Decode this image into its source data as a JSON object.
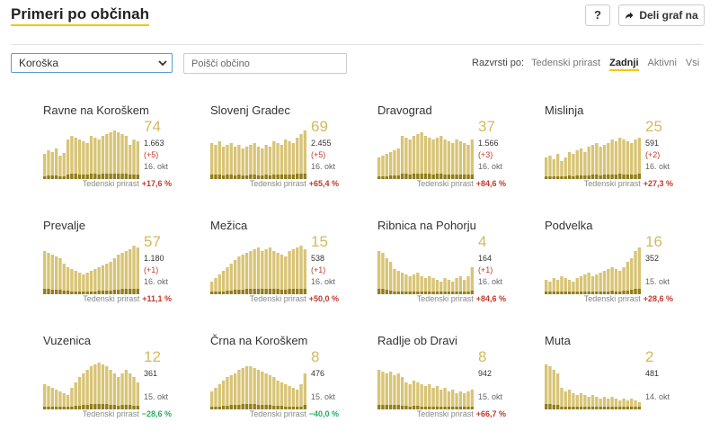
{
  "header": {
    "title": "Primeri po občinah",
    "help_label": "?",
    "share_label": "Deli graf na"
  },
  "filters": {
    "region_selected": "Koroška",
    "search_placeholder": "Poišči občino",
    "sort_label": "Razvrsti po:",
    "sort_options": [
      "Tedenski prirast",
      "Zadnji",
      "Aktivni",
      "Vsi"
    ],
    "sort_active_index": 1
  },
  "growth_label": "Tedenski prirast",
  "colors": {
    "accent": "#f2c811",
    "bar_light": "#d8c475",
    "bar_dark": "#8f7d1f",
    "growth_up": "#c0392b",
    "growth_down": "#27ae60"
  },
  "cards": [
    {
      "name": "Ravne na Koroškem",
      "active": "74",
      "total": "1.663",
      "delta": "(+5)",
      "date": "16. okt",
      "growth": "+17,6 %",
      "dir": "up",
      "bars": [
        28,
        32,
        30,
        34,
        26,
        29,
        44,
        48,
        46,
        44,
        42,
        40,
        48,
        46,
        44,
        48,
        50,
        52,
        54,
        52,
        50,
        48,
        38,
        44,
        42
      ]
    },
    {
      "name": "Slovenj Gradec",
      "active": "69",
      "total": "2.455",
      "delta": "(+5)",
      "date": "16. okt",
      "growth": "+65,4 %",
      "dir": "up",
      "bars": [
        40,
        38,
        42,
        36,
        38,
        40,
        36,
        38,
        34,
        36,
        38,
        40,
        36,
        34,
        38,
        36,
        42,
        40,
        38,
        44,
        42,
        40,
        46,
        50,
        54
      ]
    },
    {
      "name": "Dravograd",
      "active": "37",
      "total": "1.566",
      "delta": "(+3)",
      "date": "16. okt",
      "growth": "+84,6 %",
      "dir": "up",
      "bars": [
        24,
        26,
        28,
        30,
        32,
        34,
        48,
        46,
        44,
        48,
        50,
        52,
        48,
        46,
        44,
        46,
        48,
        44,
        42,
        40,
        44,
        42,
        40,
        38,
        44
      ]
    },
    {
      "name": "Mislinja",
      "active": "25",
      "total": "591",
      "delta": "(+2)",
      "date": "16. okt",
      "growth": "+27,3 %",
      "dir": "up",
      "bars": [
        24,
        26,
        22,
        28,
        20,
        24,
        30,
        28,
        32,
        34,
        30,
        36,
        38,
        40,
        36,
        38,
        40,
        44,
        42,
        46,
        44,
        42,
        40,
        44,
        46
      ]
    },
    {
      "name": "Prevalje",
      "active": "57",
      "total": "1.180",
      "delta": "(+1)",
      "date": "16. okt",
      "growth": "+11,1 %",
      "dir": "up",
      "bars": [
        48,
        46,
        44,
        42,
        40,
        34,
        30,
        28,
        26,
        24,
        22,
        24,
        26,
        28,
        30,
        32,
        34,
        36,
        40,
        44,
        46,
        48,
        50,
        54,
        52
      ]
    },
    {
      "name": "Mežica",
      "active": "15",
      "total": "538",
      "delta": "(+1)",
      "date": "16. okt",
      "growth": "+50,0 %",
      "dir": "up",
      "bars": [
        14,
        18,
        22,
        26,
        30,
        34,
        38,
        42,
        44,
        46,
        48,
        50,
        52,
        48,
        50,
        52,
        48,
        46,
        44,
        42,
        48,
        50,
        52,
        54,
        50
      ]
    },
    {
      "name": "Ribnica na Pohorju",
      "active": "4",
      "total": "164",
      "delta": "(+1)",
      "date": "16. okt",
      "growth": "+84,6 %",
      "dir": "up",
      "bars": [
        48,
        46,
        40,
        36,
        28,
        26,
        24,
        22,
        20,
        22,
        24,
        20,
        18,
        20,
        18,
        16,
        14,
        18,
        16,
        14,
        18,
        20,
        16,
        20,
        30
      ]
    },
    {
      "name": "Podvelka",
      "active": "16",
      "total": "352",
      "delta": "",
      "date": "15. okt",
      "growth": "+28,6 %",
      "dir": "up",
      "bars": [
        16,
        14,
        18,
        16,
        20,
        18,
        16,
        14,
        18,
        20,
        22,
        24,
        20,
        22,
        24,
        26,
        28,
        30,
        28,
        26,
        30,
        36,
        40,
        48,
        52
      ]
    },
    {
      "name": "Vuzenica",
      "active": "12",
      "total": "361",
      "delta": "",
      "date": "15. okt",
      "growth": "−28,6 %",
      "dir": "down",
      "bars": [
        28,
        26,
        24,
        22,
        20,
        18,
        16,
        24,
        30,
        36,
        40,
        44,
        48,
        50,
        52,
        50,
        48,
        44,
        40,
        36,
        40,
        44,
        40,
        36,
        30
      ]
    },
    {
      "name": "Črna na Koroškem",
      "active": "8",
      "total": "476",
      "delta": "",
      "date": "15. okt",
      "growth": "−40,0 %",
      "dir": "down",
      "bars": [
        20,
        24,
        28,
        32,
        36,
        38,
        40,
        44,
        46,
        48,
        48,
        46,
        44,
        42,
        40,
        38,
        36,
        32,
        30,
        28,
        26,
        24,
        22,
        28,
        40
      ]
    },
    {
      "name": "Radlje ob Dravi",
      "active": "8",
      "total": "942",
      "delta": "",
      "date": "15. okt",
      "growth": "+66,7 %",
      "dir": "up",
      "bars": [
        44,
        42,
        40,
        42,
        38,
        40,
        36,
        30,
        28,
        32,
        30,
        28,
        26,
        28,
        24,
        26,
        22,
        24,
        20,
        22,
        18,
        20,
        18,
        20,
        22
      ]
    },
    {
      "name": "Muta",
      "active": "2",
      "total": "481",
      "delta": "",
      "date": "14. okt",
      "growth": "",
      "dir": "up",
      "bars": [
        50,
        48,
        44,
        40,
        24,
        20,
        22,
        18,
        16,
        18,
        16,
        14,
        16,
        14,
        12,
        14,
        12,
        14,
        12,
        10,
        12,
        10,
        12,
        10,
        8
      ]
    }
  ]
}
